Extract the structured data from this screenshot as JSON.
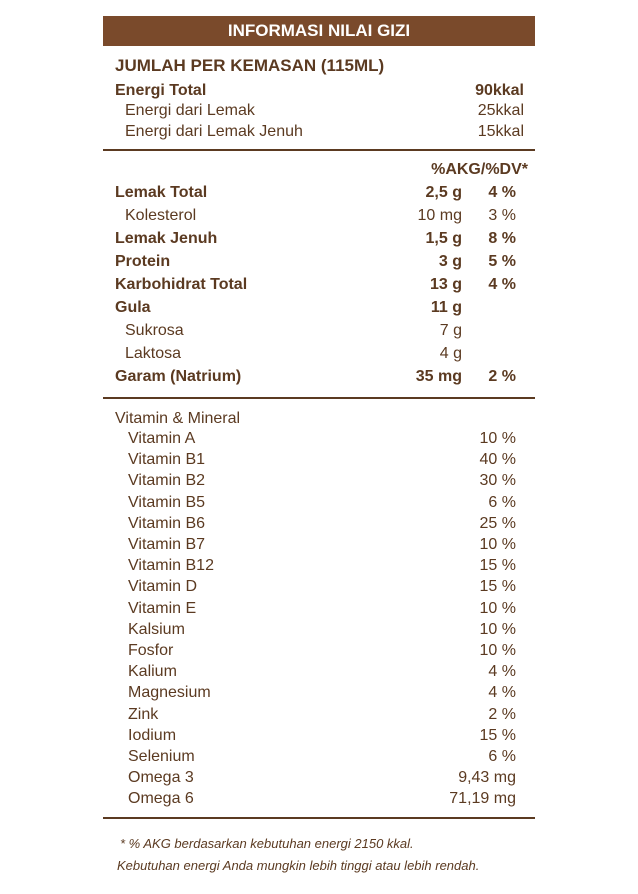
{
  "header": {
    "title": "INFORMASI NILAI GIZI",
    "serving": "JUMLAH PER KEMASAN (115ML)"
  },
  "energy": [
    {
      "label": "Energi Total",
      "value": "90kkal"
    },
    {
      "label": "Energi dari Lemak",
      "value": "25kkal"
    },
    {
      "label": "Energi dari Lemak Jenuh",
      "value": "15kkal"
    }
  ],
  "nutrients": {
    "column_header": "%AKG/%DV*",
    "rows": [
      {
        "name": "Lemak Total",
        "amount": "2,5 g",
        "percent": "4 %"
      },
      {
        "name": "Kolesterol",
        "amount": "10 mg",
        "percent": "3 %"
      },
      {
        "name": "Lemak Jenuh",
        "amount": "1,5 g",
        "percent": "8 %"
      },
      {
        "name": "Protein",
        "amount": "3 g",
        "percent": "5 %"
      },
      {
        "name": "Karbohidrat Total",
        "amount": "13 g",
        "percent": "4 %"
      },
      {
        "name": "Gula",
        "amount": "11 g"
      },
      {
        "name": "Sukrosa",
        "amount": "7 g"
      },
      {
        "name": "Laktosa",
        "amount": "4 g"
      },
      {
        "name": "Garam (Natrium)",
        "amount": "35 mg",
        "percent": "2 %"
      }
    ]
  },
  "vitamins": {
    "title": "Vitamin & Mineral",
    "rows": [
      {
        "name": "Vitamin A",
        "value": "10 %"
      },
      {
        "name": "Vitamin B1",
        "value": "40 %"
      },
      {
        "name": "Vitamin B2",
        "value": "30 %"
      },
      {
        "name": "Vitamin B5",
        "value": "6 %"
      },
      {
        "name": "Vitamin B6",
        "value": "25 %"
      },
      {
        "name": "Vitamin B7",
        "value": "10 %"
      },
      {
        "name": "Vitamin B12",
        "value": "15 %"
      },
      {
        "name": "Vitamin D",
        "value": "15 %"
      },
      {
        "name": "Vitamin E",
        "value": "10 %"
      },
      {
        "name": "Kalsium",
        "value": "10 %"
      },
      {
        "name": "Fosfor",
        "value": "10 %"
      },
      {
        "name": "Kalium",
        "value": "4 %"
      },
      {
        "name": "Magnesium",
        "value": "4 %"
      },
      {
        "name": "Zink",
        "value": "2 %"
      },
      {
        "name": "Iodium",
        "value": "15 %"
      },
      {
        "name": "Selenium",
        "value": "6 %"
      },
      {
        "name": "Omega 3",
        "value": "9,43 mg"
      },
      {
        "name": "Omega 6",
        "value": "71,19 mg"
      }
    ]
  },
  "footnote": [
    "* % AKG berdasarkan kebutuhan energi 2150 kkal.",
    "Kebutuhan energi Anda mungkin lebih tinggi atau lebih rendah."
  ]
}
